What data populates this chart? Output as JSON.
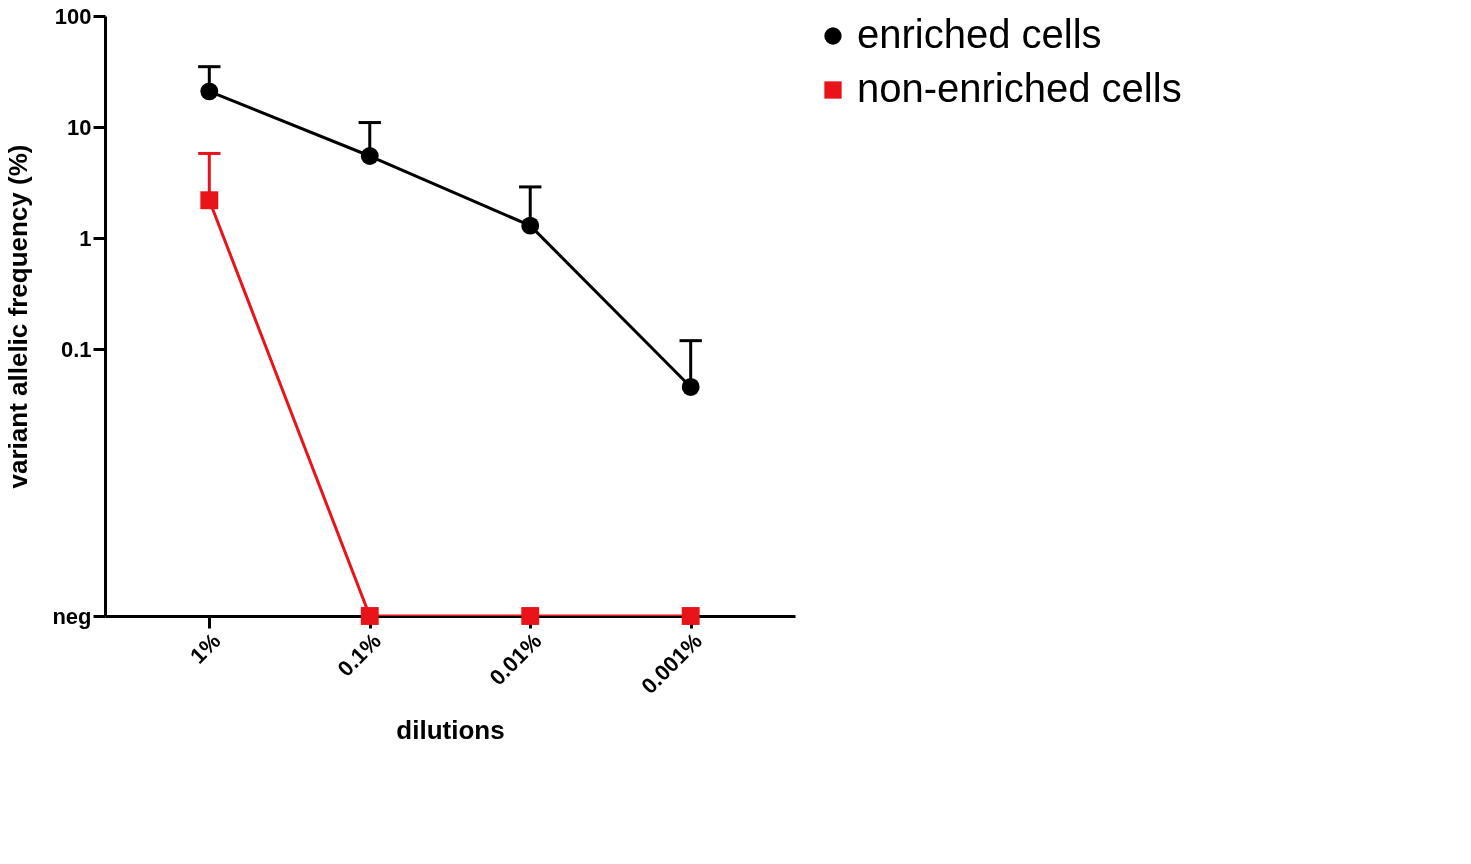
{
  "chart_data": {
    "type": "line",
    "xlabel": "dilutions",
    "ylabel": "variant allelic frequency (%)",
    "categories": [
      "1%",
      "0.1%",
      "0.01%",
      "0.001%"
    ],
    "log": "y",
    "ylim": [
      0.0004,
      100
    ],
    "yticks": [
      {
        "value": 0.0004,
        "label": "neg"
      },
      0.1,
      1,
      10,
      100
    ],
    "grid": false,
    "legend": "right",
    "line_style": "solid",
    "series": [
      {
        "name": "enriched cells",
        "color": "#000000",
        "marker": "circle",
        "values": [
          21,
          5.5,
          1.3,
          0.046
        ],
        "errors": [
          [
            21,
            35
          ],
          [
            5.5,
            11
          ],
          [
            1.3,
            2.9
          ],
          [
            0.046,
            0.12
          ]
        ]
      },
      {
        "name": "non-enriched cells",
        "color": "#e8141a",
        "marker": "square",
        "values": [
          2.2,
          0.0004,
          0.0004,
          0.0004
        ],
        "errors": [
          [
            2.2,
            5.8
          ],
          null,
          null,
          null
        ]
      }
    ]
  }
}
